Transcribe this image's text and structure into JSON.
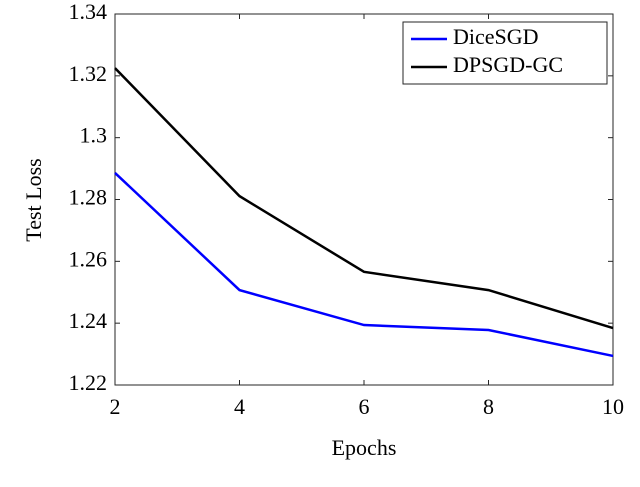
{
  "chart_data": {
    "type": "line",
    "x_label": "Epochs",
    "y_label": "Test Loss",
    "x": [
      2,
      4,
      6,
      8,
      10
    ],
    "series": [
      {
        "name": "DiceSGD",
        "color": "#0000ff",
        "values": [
          1.2886,
          1.2507,
          1.2394,
          1.2378,
          1.2294
        ]
      },
      {
        "name": "DPSGD-GC",
        "color": "#000000",
        "values": [
          1.3225,
          1.2811,
          1.2566,
          1.2507,
          1.2384
        ]
      }
    ],
    "xlim": [
      2,
      10
    ],
    "xticks": [
      2,
      4,
      6,
      8,
      10
    ],
    "ylim": [
      1.22,
      1.34
    ],
    "yticks": [
      1.22,
      1.24,
      1.26,
      1.28,
      1.3,
      1.32,
      1.34
    ],
    "legend": "upper right"
  }
}
